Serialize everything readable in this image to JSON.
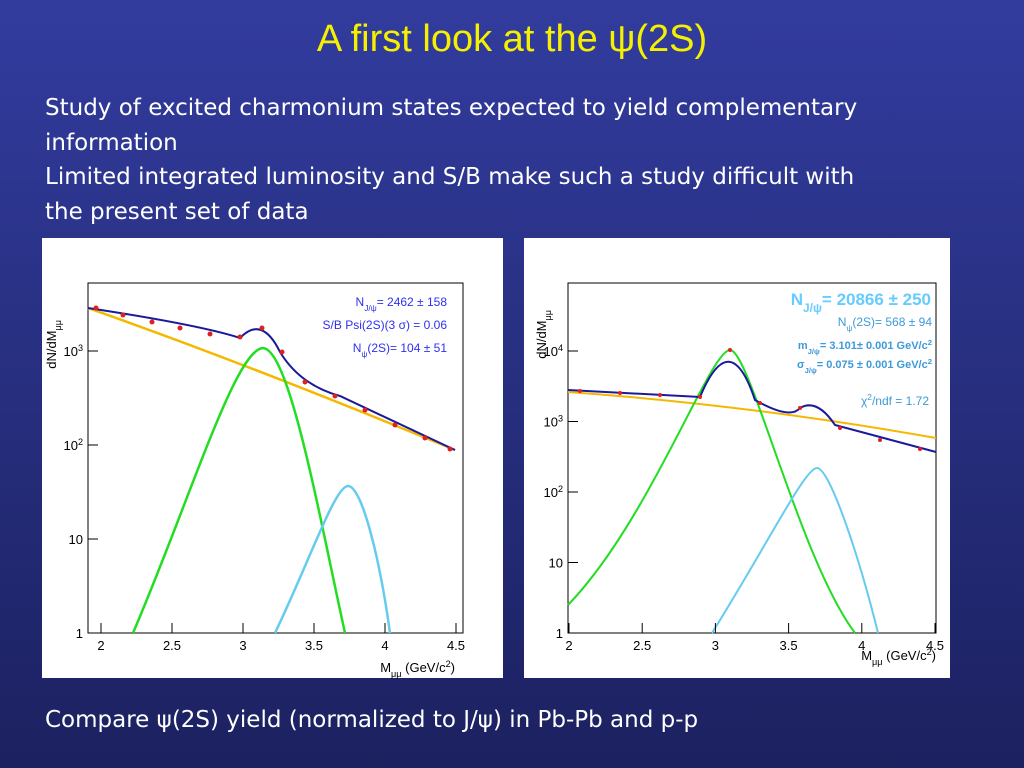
{
  "title": "A first look at the ψ(2S)",
  "bullets": [
    "Study of excited charmonium states expected to yield complementary information",
    "Limited integrated luminosity and S/B make such a study difficult with the present set of data"
  ],
  "figures": [
    {
      "y_label": [
        {
          "t": "dN/dM"
        },
        {
          "t": "μμ",
          "s": "sub"
        }
      ],
      "x_label": [
        {
          "t": "M"
        },
        {
          "t": "μμ",
          "s": "sub"
        },
        {
          "t": " (GeV/c"
        },
        {
          "t": "2",
          "s": "sup"
        },
        {
          "t": ")"
        }
      ],
      "x_ticks": [
        "2",
        "2.5",
        "3",
        "3.5",
        "4",
        "4.5"
      ],
      "y_ticks": [
        [
          {
            "t": "1"
          }
        ],
        [
          {
            "t": "10"
          }
        ],
        [
          {
            "t": "10"
          },
          {
            "t": "2",
            "s": "sup"
          }
        ],
        [
          {
            "t": "10"
          },
          {
            "t": "3",
            "s": "sup"
          }
        ]
      ],
      "annotations": [
        [
          {
            "t": "N"
          },
          {
            "t": "J/ψ",
            "s": "sub"
          },
          {
            "t": "= 2462 ± 158"
          }
        ],
        [
          {
            "t": "S/B Psi(2S)(3 σ) = 0.06"
          }
        ],
        [
          {
            "t": "N"
          },
          {
            "t": "ψ",
            "s": "sub"
          },
          {
            "t": "(2S)= 104 ± 51"
          }
        ]
      ]
    },
    {
      "y_label": [
        {
          "t": "dN/dM"
        },
        {
          "t": "μμ",
          "s": "sub"
        }
      ],
      "x_label": [
        {
          "t": "M"
        },
        {
          "t": "μμ",
          "s": "sub"
        },
        {
          "t": " (GeV/c"
        },
        {
          "t": "2",
          "s": "sup"
        },
        {
          "t": ")"
        }
      ],
      "x_ticks": [
        "2",
        "2.5",
        "3",
        "3.5",
        "4",
        "4.5"
      ],
      "y_ticks": [
        [
          {
            "t": "1"
          }
        ],
        [
          {
            "t": "10"
          }
        ],
        [
          {
            "t": "10"
          },
          {
            "t": "2",
            "s": "sup"
          }
        ],
        [
          {
            "t": "10"
          },
          {
            "t": "3",
            "s": "sup"
          }
        ],
        [
          {
            "t": "10"
          },
          {
            "t": "4",
            "s": "sup"
          }
        ]
      ],
      "annotations": [
        [
          {
            "t": "N"
          },
          {
            "t": "J/ψ",
            "s": "sub"
          },
          {
            "t": "= 20866 ± 250"
          }
        ],
        [
          {
            "t": "N"
          },
          {
            "t": "ψ",
            "s": "sub"
          },
          {
            "t": "(2S)= 568 ± 94"
          }
        ],
        [
          {
            "t": "m"
          },
          {
            "t": "J/ψ",
            "s": "sub"
          },
          {
            "t": "= 3.101± 0.001 GeV/c"
          },
          {
            "t": "2",
            "s": "sup"
          }
        ],
        [
          {
            "t": "σ"
          },
          {
            "t": "J/ψ",
            "s": "sub"
          },
          {
            "t": "= 0.075 ± 0.001 GeV/c"
          },
          {
            "t": "2",
            "s": "sup"
          }
        ],
        [
          {
            "t": "χ"
          },
          {
            "t": "2",
            "s": "sup"
          },
          {
            "t": "/ndf = 1.72"
          }
        ]
      ]
    }
  ],
  "caption": "Compare ψ(2S) yield (normalized to J/ψ) in Pb-Pb and p-p"
}
